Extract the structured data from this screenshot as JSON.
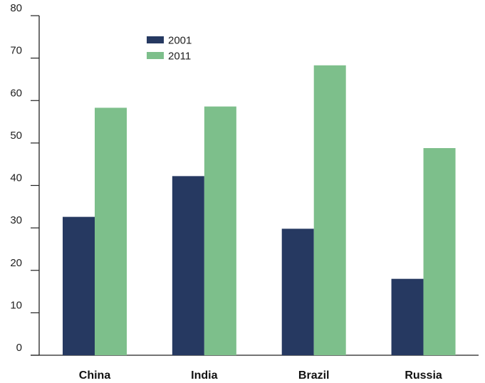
{
  "chart_data": {
    "type": "bar",
    "title": "",
    "xlabel": "",
    "ylabel": "",
    "categories": [
      "China",
      "India",
      "Brazil",
      "Russia"
    ],
    "series": [
      {
        "name": "2001",
        "values": [
          32.6,
          42.2,
          29.8,
          18.0
        ],
        "color": "#263961"
      },
      {
        "name": "2011",
        "values": [
          58.3,
          58.6,
          68.3,
          48.8
        ],
        "color": "#7dbf8b"
      }
    ],
    "ylim": [
      0,
      80
    ],
    "yticks": [
      0,
      10,
      20,
      30,
      40,
      50,
      60,
      70,
      80
    ],
    "grid": false,
    "legend": "top-center"
  }
}
